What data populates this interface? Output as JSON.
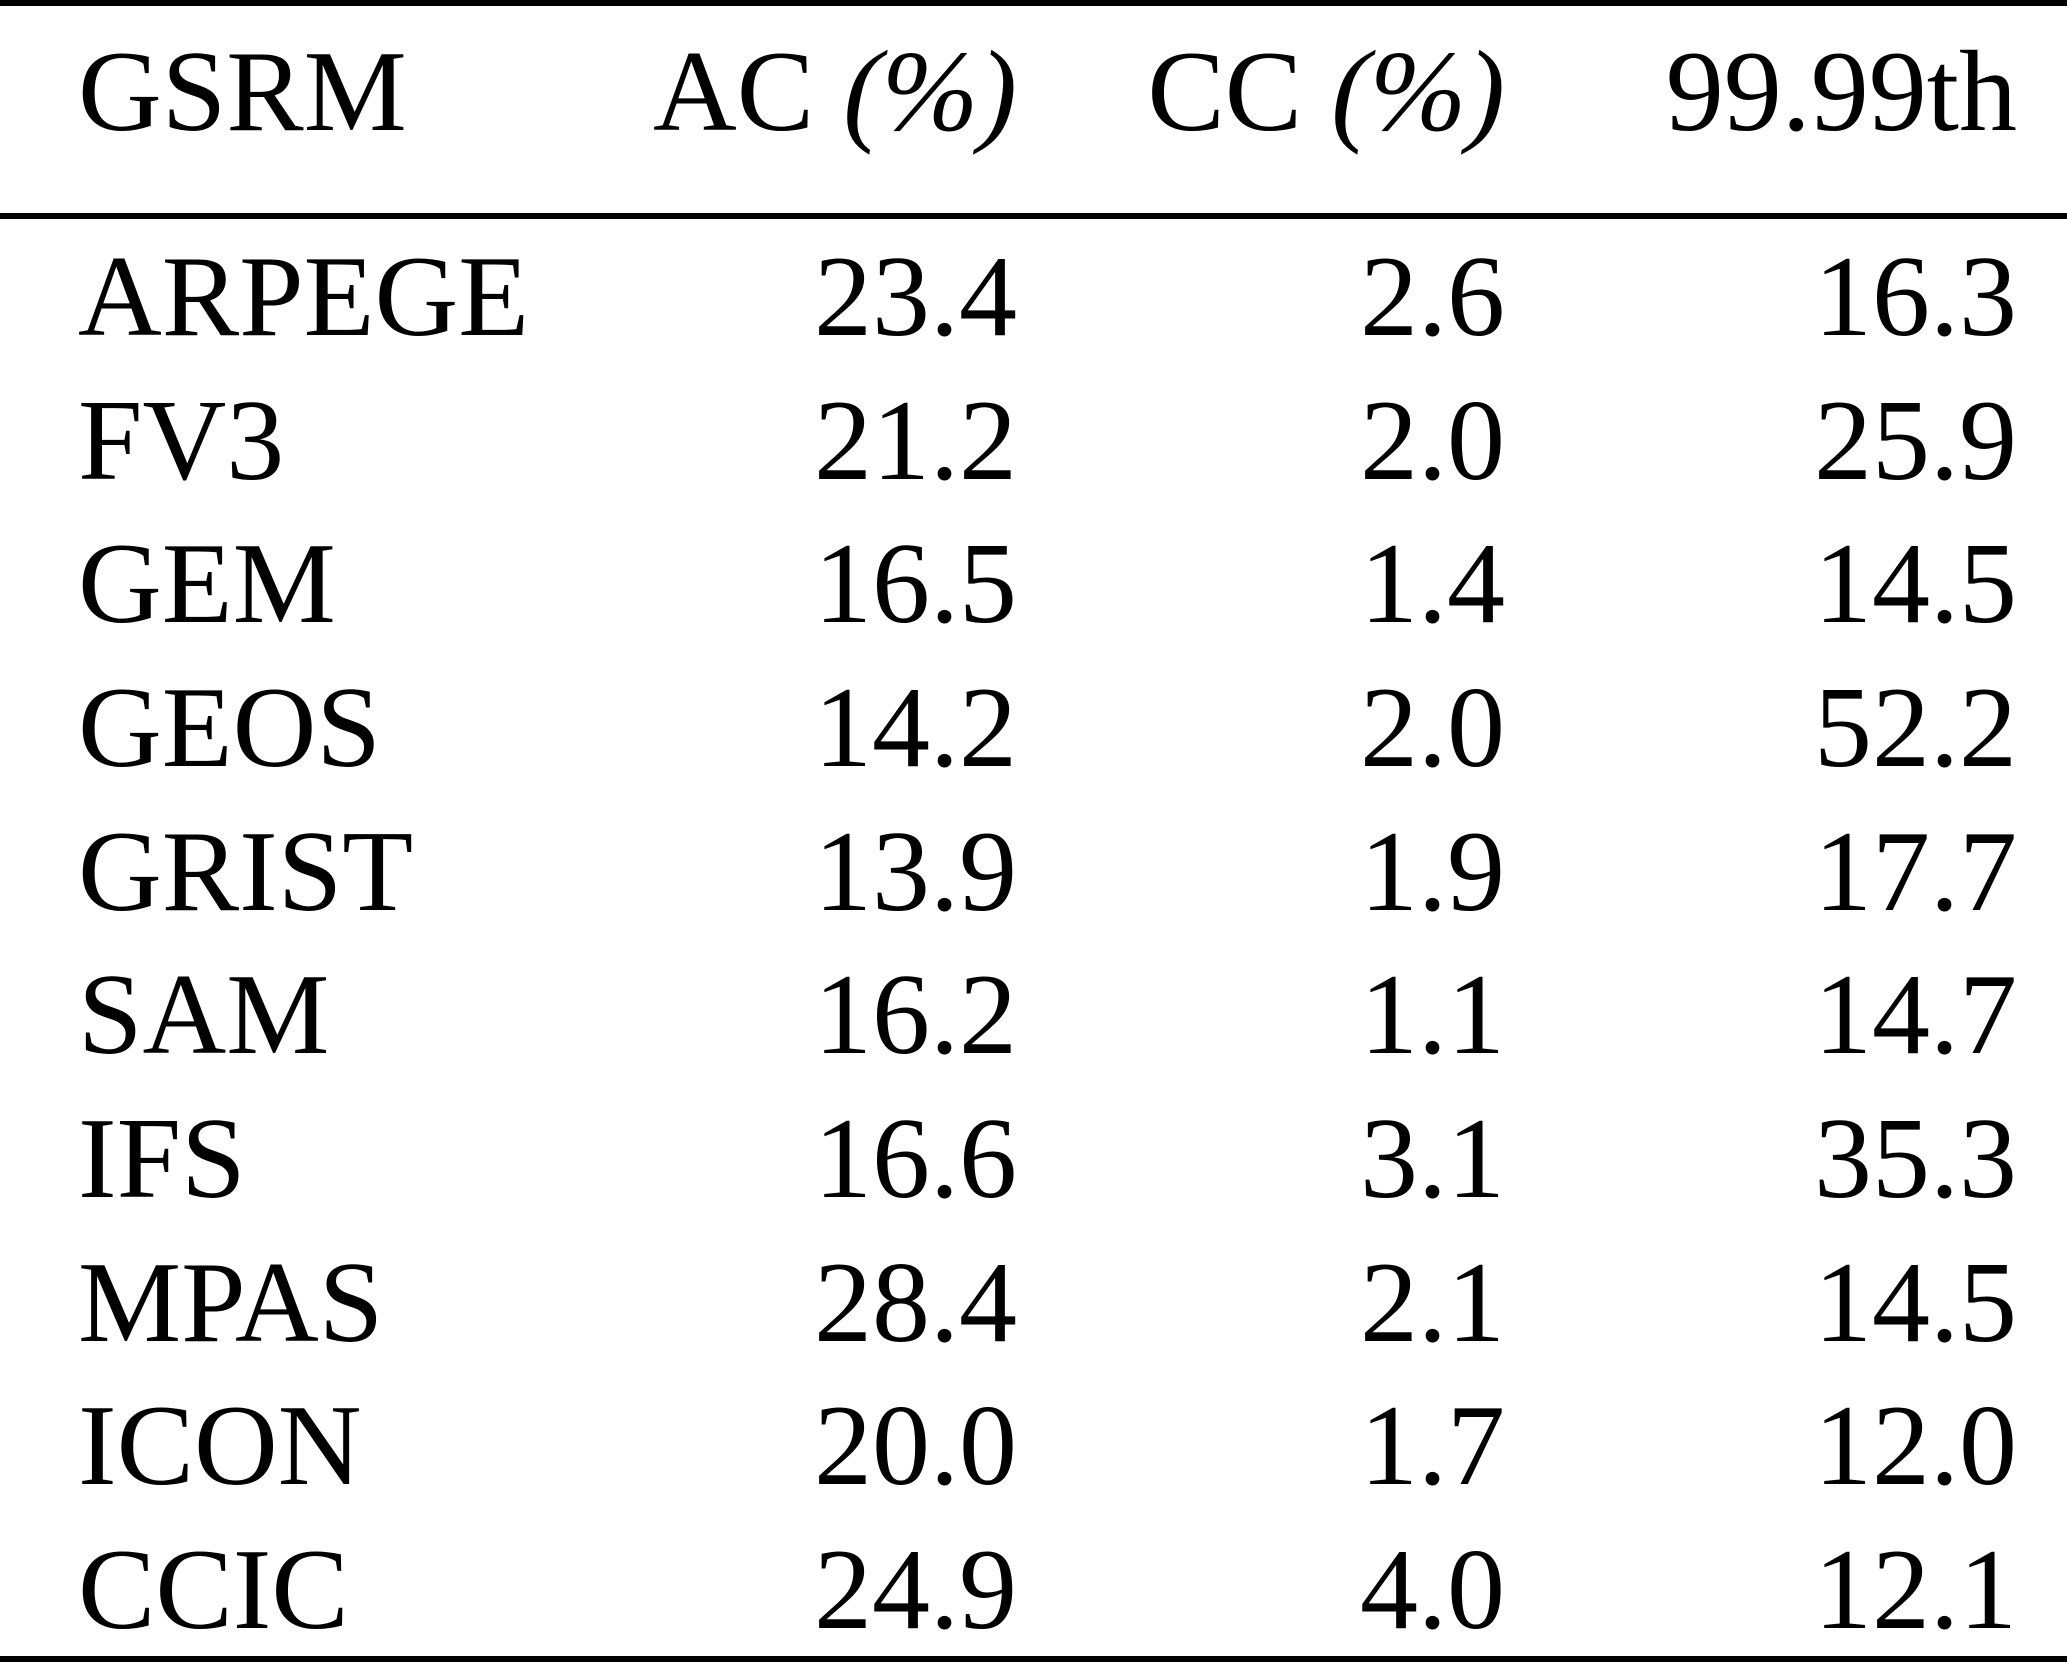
{
  "table": {
    "columns": [
      {
        "label": "GSRM",
        "unit": ""
      },
      {
        "label": "AC",
        "unit": " (%)"
      },
      {
        "label": "CC",
        "unit": " (%)"
      },
      {
        "label": "99.99th",
        "unit": ""
      }
    ],
    "rows": [
      {
        "model": "ARPEGE",
        "ac": "23.4",
        "cc": "2.6",
        "p99_99th": "16.3"
      },
      {
        "model": "FV3",
        "ac": "21.2",
        "cc": "2.0",
        "p99_99th": "25.9"
      },
      {
        "model": "GEM",
        "ac": "16.5",
        "cc": "1.4",
        "p99_99th": "14.5"
      },
      {
        "model": "GEOS",
        "ac": "14.2",
        "cc": "2.0",
        "p99_99th": "52.2"
      },
      {
        "model": "GRIST",
        "ac": "13.9",
        "cc": "1.9",
        "p99_99th": "17.7"
      },
      {
        "model": "SAM",
        "ac": "16.2",
        "cc": "1.1",
        "p99_99th": "14.7"
      },
      {
        "model": "IFS",
        "ac": "16.6",
        "cc": "3.1",
        "p99_99th": "35.3"
      },
      {
        "model": "MPAS",
        "ac": "28.4",
        "cc": "2.1",
        "p99_99th": "14.5"
      },
      {
        "model": "ICON",
        "ac": "20.0",
        "cc": "1.7",
        "p99_99th": "12.0"
      },
      {
        "model": "CCIC",
        "ac": "24.9",
        "cc": "4.0",
        "p99_99th": "12.1"
      }
    ],
    "colors": {
      "text": "#000000",
      "background": "#ffffff",
      "rule": "#000000"
    }
  }
}
